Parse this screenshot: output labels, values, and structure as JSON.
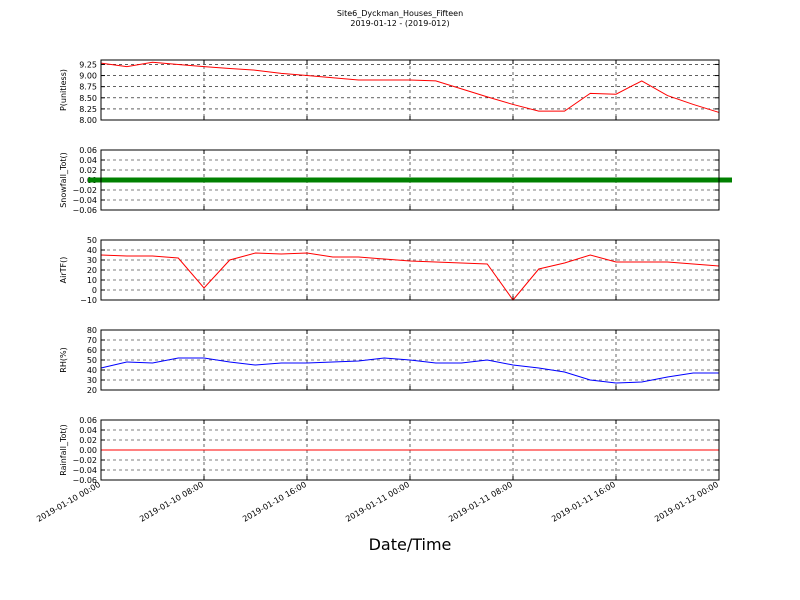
{
  "chart_data": {
    "type": "line",
    "title": "Site6_Dyckman_Houses_Fifteen",
    "subtitle": "2019-01-12 - (2019-012)",
    "xlabel": "Date/Time",
    "grid": true,
    "xlim": [
      "2019-01-10 00:00",
      "2019-01-12 00:00"
    ],
    "xticks": [
      "2019-01-10 00:00",
      "2019-01-10 08:00",
      "2019-01-10 16:00",
      "2019-01-11 00:00",
      "2019-01-11 08:00",
      "2019-01-11 16:00",
      "2019-01-12 00:00"
    ],
    "x": [
      "2019-01-10 00:00",
      "2019-01-10 02:00",
      "2019-01-10 04:00",
      "2019-01-10 06:00",
      "2019-01-10 08:00",
      "2019-01-10 10:00",
      "2019-01-10 12:00",
      "2019-01-10 14:00",
      "2019-01-10 16:00",
      "2019-01-10 18:00",
      "2019-01-10 20:00",
      "2019-01-10 22:00",
      "2019-01-11 00:00",
      "2019-01-11 02:00",
      "2019-01-11 04:00",
      "2019-01-11 06:00",
      "2019-01-11 08:00",
      "2019-01-11 10:00",
      "2019-01-11 12:00",
      "2019-01-11 14:00",
      "2019-01-11 16:00",
      "2019-01-11 18:00",
      "2019-01-11 20:00",
      "2019-01-11 22:00",
      "2019-01-12 00:00"
    ],
    "series": [
      {
        "name": "P(unitless)",
        "color": "#ff0000",
        "ylim": [
          8.0,
          9.35
        ],
        "yticks": [
          {
            "value": 8.0,
            "label": "8.00"
          },
          {
            "value": 8.25,
            "label": "8.25"
          },
          {
            "value": 8.5,
            "label": "8.50"
          },
          {
            "value": 8.75,
            "label": "8.75"
          },
          {
            "value": 9.0,
            "label": "9.00"
          },
          {
            "value": 9.25,
            "label": "9.25"
          }
        ],
        "values": [
          9.28,
          9.2,
          9.3,
          9.25,
          9.2,
          9.16,
          9.12,
          9.05,
          9.0,
          8.95,
          8.9,
          8.9,
          8.9,
          8.88,
          8.7,
          8.52,
          8.35,
          8.2,
          8.2,
          8.6,
          8.58,
          8.88,
          8.55,
          8.35,
          8.17
        ]
      },
      {
        "name": "Snowfall_Tot()",
        "color": "#008000",
        "markers": true,
        "ylim": [
          -0.06,
          0.06
        ],
        "yticks": [
          {
            "value": -0.06,
            "label": "−0.06"
          },
          {
            "value": -0.04,
            "label": "−0.04"
          },
          {
            "value": -0.02,
            "label": "−0.02"
          },
          {
            "value": 0,
            "label": "0.00"
          },
          {
            "value": 0.02,
            "label": "0.02"
          },
          {
            "value": 0.04,
            "label": "0.04"
          },
          {
            "value": 0.06,
            "label": "0.06"
          }
        ],
        "values": [
          0,
          0,
          0,
          0,
          0,
          0,
          0,
          0,
          0,
          0,
          0,
          0,
          0,
          0,
          0,
          0,
          0,
          0,
          0,
          0,
          0,
          0,
          0,
          0,
          0
        ]
      },
      {
        "name": "AirTF()",
        "color": "#ff0000",
        "ylim": [
          -10,
          50
        ],
        "yticks": [
          {
            "value": -10,
            "label": "−10"
          },
          0,
          10,
          20,
          30,
          40,
          50
        ],
        "values": [
          35,
          34,
          34,
          32,
          2,
          30,
          37,
          36,
          37,
          33,
          33,
          31,
          29,
          28,
          27,
          26,
          -10,
          21,
          27,
          35,
          28,
          28,
          28,
          26,
          24
        ]
      },
      {
        "name": "RH(%)",
        "color": "#0000ff",
        "ylim": [
          20,
          80
        ],
        "yticks": [
          20,
          30,
          40,
          50,
          60,
          70,
          80
        ],
        "values": [
          42,
          48,
          47,
          52,
          52,
          48,
          45,
          47,
          47,
          48,
          49,
          52,
          50,
          47,
          47,
          50,
          45,
          42,
          38,
          30,
          27,
          28,
          33,
          37,
          37
        ]
      },
      {
        "name": "Rainfall_Tot()",
        "color": "#ff0000",
        "ylim": [
          -0.06,
          0.06
        ],
        "yticks": [
          {
            "value": -0.06,
            "label": "−0.06"
          },
          {
            "value": -0.04,
            "label": "−0.04"
          },
          {
            "value": -0.02,
            "label": "−0.02"
          },
          {
            "value": 0,
            "label": "0.00"
          },
          {
            "value": 0.02,
            "label": "0.02"
          },
          {
            "value": 0.04,
            "label": "0.04"
          },
          {
            "value": 0.06,
            "label": "0.06"
          }
        ],
        "values": [
          0,
          0,
          0,
          0,
          0,
          0,
          0,
          0,
          0,
          0,
          0,
          0,
          0,
          0,
          0,
          0,
          0,
          0,
          0,
          0,
          0,
          0,
          0,
          0,
          0
        ]
      }
    ]
  }
}
